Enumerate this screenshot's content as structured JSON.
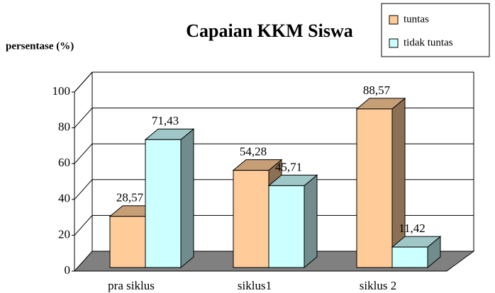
{
  "chart_data": {
    "type": "bar3d",
    "title": "Capaian KKM Siswa",
    "ylabel": "persentase (%)",
    "categories": [
      "pra siklus",
      "siklus1",
      "siklus 2"
    ],
    "series": [
      {
        "name": "tuntas",
        "color": "#FFCC99",
        "values": [
          28.57,
          54.28,
          88.57
        ],
        "value_labels": [
          "28,57",
          "54,28",
          "88,57"
        ]
      },
      {
        "name": "tidak tuntas",
        "color": "#CCFFFF",
        "values": [
          71.43,
          45.71,
          11.42
        ],
        "value_labels": [
          "71,43",
          "45,71",
          "11,42"
        ]
      }
    ],
    "ylim": [
      0,
      100
    ],
    "yticks": [
      0,
      20,
      40,
      60,
      80,
      100
    ],
    "grid": true,
    "legend": "top-right"
  }
}
